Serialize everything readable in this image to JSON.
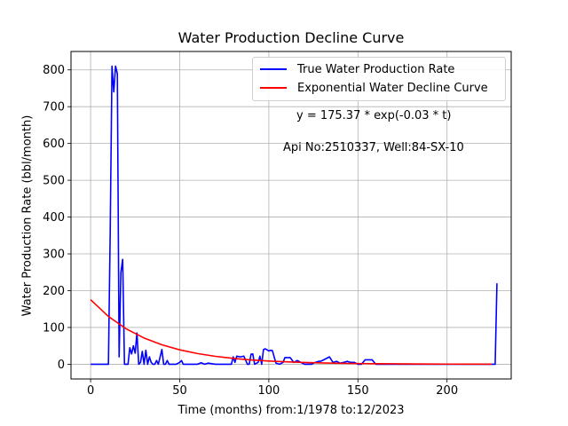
{
  "chart_data": {
    "type": "line",
    "title": "Water Production Decline Curve",
    "xlabel": "Time (months) from:1/1978 to:12/2023",
    "ylabel": "Water Production Rate (bbl/month)",
    "xlim": [
      -11,
      236
    ],
    "ylim": [
      -40,
      850
    ],
    "xticks": [
      0,
      50,
      100,
      150,
      200
    ],
    "yticks": [
      0,
      100,
      200,
      300,
      400,
      500,
      600,
      700,
      800
    ],
    "grid": true,
    "legend_position": "top-right",
    "annotations": [
      "y = 175.37 * exp(-0.03 * t)",
      "Api No:2510337, Well:84-SX-10"
    ],
    "series": [
      {
        "name": "True Water Production Rate",
        "color": "#0000ff",
        "x": [
          0,
          10,
          11,
          12,
          13,
          14,
          15,
          16,
          17,
          18,
          19,
          20,
          21,
          22,
          23,
          24,
          25,
          26,
          27,
          28,
          29,
          30,
          31,
          32,
          33,
          34,
          35,
          36,
          37,
          38,
          40,
          41,
          42,
          43,
          44,
          46,
          48,
          50,
          51,
          52,
          56,
          60,
          62,
          64,
          66,
          70,
          75,
          79,
          80,
          81,
          82,
          84,
          86,
          88,
          89,
          90,
          91,
          92,
          94,
          95,
          96,
          97,
          98,
          100,
          101,
          102,
          104,
          106,
          108,
          109,
          110,
          112,
          114,
          116,
          118,
          120,
          122,
          124,
          126,
          128,
          129,
          130,
          134,
          136,
          138,
          140,
          142,
          144,
          146,
          148,
          150,
          152,
          154,
          155,
          156,
          158,
          160,
          162,
          164,
          166,
          167,
          168,
          170,
          180,
          190,
          200,
          210,
          220,
          225,
          227,
          228
        ],
        "values": [
          0,
          0,
          360,
          810,
          740,
          810,
          790,
          20,
          250,
          285,
          0,
          0,
          0,
          45,
          28,
          50,
          30,
          85,
          0,
          5,
          35,
          0,
          38,
          0,
          20,
          5,
          0,
          0,
          10,
          0,
          40,
          0,
          0,
          10,
          0,
          0,
          0,
          5,
          10,
          0,
          0,
          0,
          4,
          0,
          3,
          0,
          0,
          0,
          20,
          5,
          22,
          20,
          22,
          0,
          0,
          27,
          28,
          0,
          5,
          22,
          0,
          40,
          42,
          36,
          38,
          37,
          3,
          0,
          5,
          18,
          18,
          18,
          5,
          10,
          5,
          0,
          0,
          0,
          5,
          8,
          8,
          10,
          20,
          5,
          8,
          3,
          5,
          8,
          5,
          5,
          0,
          0,
          12,
          12,
          12,
          12,
          0,
          0,
          0,
          0,
          0,
          0,
          0,
          0,
          0,
          0,
          0,
          0,
          0,
          0,
          220
        ]
      },
      {
        "name": "Exponential Water Decline Curve",
        "color": "#ff0000",
        "function": "y = 175.37 * exp(-0.03 * t)",
        "x": [
          0,
          10,
          20,
          30,
          40,
          50,
          60,
          70,
          80,
          90,
          100,
          110,
          120,
          130,
          140,
          150,
          160,
          170,
          180,
          190,
          200,
          210,
          220,
          225
        ],
        "values": [
          175.4,
          129.9,
          96.2,
          71.3,
          52.8,
          39.1,
          29.0,
          21.5,
          15.9,
          11.8,
          8.7,
          6.5,
          4.8,
          3.5,
          2.6,
          1.9,
          1.4,
          1.1,
          0.8,
          0.6,
          0.4,
          0.3,
          0.2,
          0.2
        ]
      }
    ]
  }
}
